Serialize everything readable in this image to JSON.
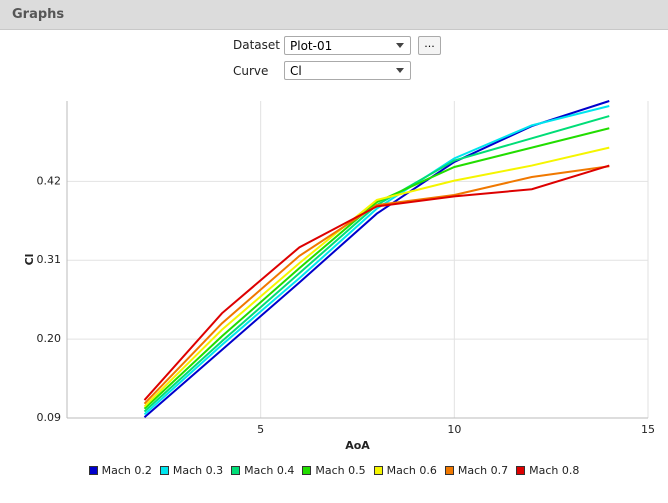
{
  "header": {
    "title": "Graphs"
  },
  "controls": {
    "dataset_label": "Dataset",
    "dataset_value": "Plot-01",
    "more_button": "...",
    "curve_label": "Curve",
    "curve_value": "Cl"
  },
  "chart_data": {
    "type": "line",
    "x_label": "AoA",
    "y_label": "Cl",
    "x": [
      2,
      4,
      6,
      8,
      10,
      12,
      14
    ],
    "series": [
      {
        "name": "Mach 0.2",
        "color": "#0000cc",
        "values": [
          0.091,
          0.185,
          0.279,
          0.375,
          0.447,
          0.497,
          0.532
        ]
      },
      {
        "name": "Mach 0.3",
        "color": "#00e5ee",
        "values": [
          0.095,
          0.192,
          0.285,
          0.382,
          0.452,
          0.498,
          0.525
        ]
      },
      {
        "name": "Mach 0.4",
        "color": "#00dd77",
        "values": [
          0.099,
          0.197,
          0.292,
          0.387,
          0.449,
          0.48,
          0.511
        ]
      },
      {
        "name": "Mach 0.5",
        "color": "#22dd00",
        "values": [
          0.103,
          0.204,
          0.299,
          0.391,
          0.44,
          0.467,
          0.494
        ]
      },
      {
        "name": "Mach 0.6",
        "color": "#f5f500",
        "values": [
          0.106,
          0.213,
          0.306,
          0.394,
          0.421,
          0.442,
          0.467
        ]
      },
      {
        "name": "Mach 0.7",
        "color": "#f07800",
        "values": [
          0.11,
          0.222,
          0.316,
          0.387,
          0.401,
          0.426,
          0.441
        ]
      },
      {
        "name": "Mach 0.8",
        "color": "#dd0000",
        "values": [
          0.115,
          0.236,
          0.328,
          0.385,
          0.399,
          0.409,
          0.442
        ]
      }
    ],
    "xlim": [
      0,
      15
    ],
    "xticks": [
      5,
      10,
      15
    ],
    "ylim": [
      0.09,
      0.532
    ],
    "yticks": [
      0.09,
      {
        "value": 0.2,
        "label": "0.20"
      },
      0.31,
      0.42
    ],
    "grid": true,
    "legend": "bottom"
  }
}
